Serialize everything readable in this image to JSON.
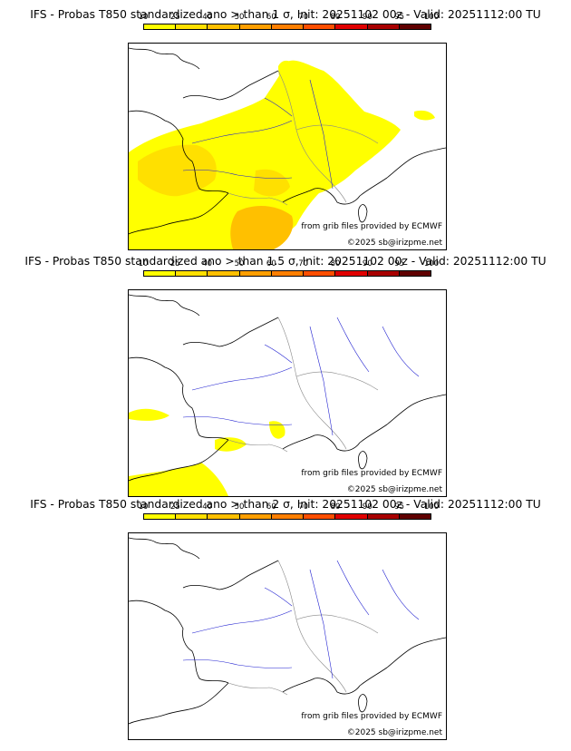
{
  "colorbar": {
    "ticks": [
      "10",
      "25",
      "40",
      "50",
      "60",
      "70",
      "80",
      "90",
      "95",
      "100"
    ],
    "colors": [
      "#ffff00",
      "#ffe000",
      "#ffc000",
      "#ff9f00",
      "#ff7f00",
      "#ff4f00",
      "#e00000",
      "#a80000",
      "#600000"
    ]
  },
  "panels": [
    {
      "title": "IFS - Probas T850  standardized ano > than 1 σ, Init: 20251102 00z - Valid: 20251112:00 TU"
    },
    {
      "title": "IFS - Probas T850  standardized ano > than 1.5 σ, Init: 20251102 00z - Valid: 20251112:00 TU"
    },
    {
      "title": "IFS - Probas T850  standardized ano > than 2 σ, Init: 20251102 00z - Valid: 20251112:00 TU"
    }
  ],
  "credits": {
    "grib": "from grib files provided by ECMWF",
    "copyright": "©2025 sb@irizpme.net"
  },
  "style": {
    "coast": "#000000",
    "border": "#888888",
    "river": "#1f1fd0",
    "prob_low": "#ffff00",
    "prob_mid": "#ffe000",
    "prob_high": "#ffc000"
  }
}
